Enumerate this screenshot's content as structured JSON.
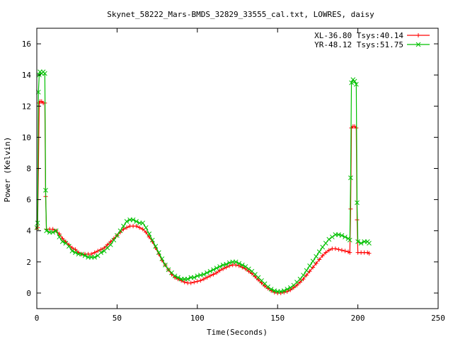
{
  "chart_data": {
    "type": "line",
    "title": "Skynet_58222_Mars-BMDS_32829_33555_cal.txt, LOWRES, daisy",
    "xlabel": "Time(Seconds)",
    "ylabel": "Power (Kelvin)",
    "xlim": [
      0,
      250
    ],
    "ylim": [
      -1,
      17
    ],
    "xticks": [
      "0",
      "50",
      "100",
      "150",
      "200",
      "250"
    ],
    "yticks": [
      "0",
      "2",
      "4",
      "6",
      "8",
      "10",
      "12",
      "14",
      "16"
    ],
    "grid": false,
    "legend_position": "top-right",
    "series": [
      {
        "name": "XL-36.80 Tsys:40.14",
        "color": "#ff0000",
        "points": [
          [
            0,
            4.1
          ],
          [
            0.5,
            4.2
          ],
          [
            1,
            8.0
          ],
          [
            1.5,
            12.2
          ],
          [
            2,
            12.3
          ],
          [
            3,
            12.3
          ],
          [
            4,
            12.2
          ],
          [
            5,
            12.2
          ],
          [
            5.5,
            6.2
          ],
          [
            6,
            4.1
          ],
          [
            8,
            4.1
          ],
          [
            10,
            4.1
          ],
          [
            12,
            4.0
          ],
          [
            14,
            3.8
          ],
          [
            16,
            3.5
          ],
          [
            18,
            3.3
          ],
          [
            20,
            3.1
          ],
          [
            22,
            2.9
          ],
          [
            24,
            2.8
          ],
          [
            26,
            2.6
          ],
          [
            28,
            2.5
          ],
          [
            30,
            2.5
          ],
          [
            32,
            2.5
          ],
          [
            34,
            2.5
          ],
          [
            36,
            2.6
          ],
          [
            38,
            2.7
          ],
          [
            40,
            2.8
          ],
          [
            42,
            2.9
          ],
          [
            44,
            3.1
          ],
          [
            46,
            3.3
          ],
          [
            48,
            3.5
          ],
          [
            50,
            3.7
          ],
          [
            52,
            3.9
          ],
          [
            54,
            4.1
          ],
          [
            56,
            4.2
          ],
          [
            58,
            4.3
          ],
          [
            60,
            4.3
          ],
          [
            62,
            4.3
          ],
          [
            64,
            4.2
          ],
          [
            66,
            4.1
          ],
          [
            68,
            3.9
          ],
          [
            70,
            3.6
          ],
          [
            72,
            3.3
          ],
          [
            74,
            2.9
          ],
          [
            76,
            2.5
          ],
          [
            78,
            2.1
          ],
          [
            80,
            1.8
          ],
          [
            82,
            1.5
          ],
          [
            84,
            1.2
          ],
          [
            86,
            1.0
          ],
          [
            88,
            0.9
          ],
          [
            90,
            0.8
          ],
          [
            92,
            0.7
          ],
          [
            94,
            0.65
          ],
          [
            96,
            0.65
          ],
          [
            98,
            0.7
          ],
          [
            100,
            0.75
          ],
          [
            102,
            0.8
          ],
          [
            104,
            0.9
          ],
          [
            106,
            1.0
          ],
          [
            108,
            1.1
          ],
          [
            110,
            1.2
          ],
          [
            112,
            1.3
          ],
          [
            114,
            1.45
          ],
          [
            116,
            1.55
          ],
          [
            118,
            1.65
          ],
          [
            120,
            1.75
          ],
          [
            122,
            1.8
          ],
          [
            124,
            1.8
          ],
          [
            126,
            1.75
          ],
          [
            128,
            1.65
          ],
          [
            130,
            1.55
          ],
          [
            132,
            1.4
          ],
          [
            134,
            1.25
          ],
          [
            136,
            1.05
          ],
          [
            138,
            0.85
          ],
          [
            140,
            0.65
          ],
          [
            142,
            0.45
          ],
          [
            144,
            0.3
          ],
          [
            146,
            0.15
          ],
          [
            148,
            0.05
          ],
          [
            150,
            0.0
          ],
          [
            152,
            0.0
          ],
          [
            154,
            0.05
          ],
          [
            156,
            0.1
          ],
          [
            158,
            0.2
          ],
          [
            160,
            0.35
          ],
          [
            162,
            0.5
          ],
          [
            164,
            0.7
          ],
          [
            166,
            0.9
          ],
          [
            168,
            1.15
          ],
          [
            170,
            1.4
          ],
          [
            172,
            1.65
          ],
          [
            174,
            1.9
          ],
          [
            176,
            2.15
          ],
          [
            178,
            2.4
          ],
          [
            180,
            2.6
          ],
          [
            182,
            2.75
          ],
          [
            184,
            2.85
          ],
          [
            186,
            2.85
          ],
          [
            188,
            2.8
          ],
          [
            190,
            2.75
          ],
          [
            192,
            2.7
          ],
          [
            194,
            2.65
          ],
          [
            195,
            2.6
          ],
          [
            195.5,
            5.4
          ],
          [
            196,
            10.6
          ],
          [
            197,
            10.7
          ],
          [
            198,
            10.7
          ],
          [
            199,
            10.6
          ],
          [
            199.5,
            4.7
          ],
          [
            200,
            2.6
          ],
          [
            202,
            2.6
          ],
          [
            204,
            2.6
          ],
          [
            206,
            2.6
          ],
          [
            207,
            2.55
          ]
        ]
      },
      {
        "name": "YR-48.12 Tsys:51.75",
        "color": "#00c000",
        "points": [
          [
            0,
            4.2
          ],
          [
            0.5,
            4.5
          ],
          [
            1,
            12.9
          ],
          [
            1.5,
            14.0
          ],
          [
            2,
            14.2
          ],
          [
            3,
            14.1
          ],
          [
            4,
            14.2
          ],
          [
            5,
            14.1
          ],
          [
            5.5,
            6.6
          ],
          [
            6,
            4.0
          ],
          [
            8,
            3.9
          ],
          [
            10,
            3.9
          ],
          [
            12,
            4.0
          ],
          [
            14,
            3.6
          ],
          [
            16,
            3.3
          ],
          [
            18,
            3.2
          ],
          [
            20,
            3.0
          ],
          [
            22,
            2.7
          ],
          [
            24,
            2.6
          ],
          [
            26,
            2.5
          ],
          [
            28,
            2.5
          ],
          [
            30,
            2.4
          ],
          [
            32,
            2.3
          ],
          [
            34,
            2.3
          ],
          [
            36,
            2.3
          ],
          [
            38,
            2.4
          ],
          [
            40,
            2.6
          ],
          [
            42,
            2.7
          ],
          [
            44,
            2.9
          ],
          [
            46,
            3.1
          ],
          [
            48,
            3.4
          ],
          [
            50,
            3.7
          ],
          [
            52,
            4.0
          ],
          [
            54,
            4.3
          ],
          [
            56,
            4.6
          ],
          [
            58,
            4.7
          ],
          [
            60,
            4.7
          ],
          [
            62,
            4.6
          ],
          [
            64,
            4.5
          ],
          [
            66,
            4.5
          ],
          [
            68,
            4.2
          ],
          [
            70,
            3.8
          ],
          [
            72,
            3.4
          ],
          [
            74,
            3.0
          ],
          [
            76,
            2.6
          ],
          [
            78,
            2.2
          ],
          [
            80,
            1.8
          ],
          [
            82,
            1.5
          ],
          [
            84,
            1.3
          ],
          [
            86,
            1.1
          ],
          [
            88,
            1.0
          ],
          [
            90,
            0.9
          ],
          [
            92,
            0.9
          ],
          [
            94,
            0.9
          ],
          [
            96,
            1.0
          ],
          [
            98,
            1.0
          ],
          [
            100,
            1.1
          ],
          [
            102,
            1.15
          ],
          [
            104,
            1.2
          ],
          [
            106,
            1.3
          ],
          [
            108,
            1.4
          ],
          [
            110,
            1.5
          ],
          [
            112,
            1.6
          ],
          [
            114,
            1.7
          ],
          [
            116,
            1.8
          ],
          [
            118,
            1.85
          ],
          [
            120,
            1.95
          ],
          [
            122,
            2.0
          ],
          [
            124,
            2.0
          ],
          [
            126,
            1.9
          ],
          [
            128,
            1.8
          ],
          [
            130,
            1.7
          ],
          [
            132,
            1.55
          ],
          [
            134,
            1.4
          ],
          [
            136,
            1.2
          ],
          [
            138,
            1.0
          ],
          [
            140,
            0.8
          ],
          [
            142,
            0.6
          ],
          [
            144,
            0.4
          ],
          [
            146,
            0.25
          ],
          [
            148,
            0.15
          ],
          [
            150,
            0.1
          ],
          [
            152,
            0.1
          ],
          [
            154,
            0.15
          ],
          [
            156,
            0.25
          ],
          [
            158,
            0.35
          ],
          [
            160,
            0.5
          ],
          [
            162,
            0.7
          ],
          [
            164,
            0.9
          ],
          [
            166,
            1.15
          ],
          [
            168,
            1.45
          ],
          [
            170,
            1.75
          ],
          [
            172,
            2.05
          ],
          [
            174,
            2.35
          ],
          [
            176,
            2.65
          ],
          [
            178,
            2.95
          ],
          [
            180,
            3.2
          ],
          [
            182,
            3.45
          ],
          [
            184,
            3.6
          ],
          [
            186,
            3.75
          ],
          [
            188,
            3.75
          ],
          [
            190,
            3.7
          ],
          [
            192,
            3.6
          ],
          [
            194,
            3.5
          ],
          [
            195,
            3.4
          ],
          [
            195.5,
            7.4
          ],
          [
            196,
            13.5
          ],
          [
            197,
            13.7
          ],
          [
            198,
            13.6
          ],
          [
            199,
            13.4
          ],
          [
            199.5,
            5.8
          ],
          [
            200,
            3.3
          ],
          [
            202,
            3.2
          ],
          [
            204,
            3.3
          ],
          [
            206,
            3.3
          ],
          [
            207,
            3.2
          ]
        ]
      }
    ]
  }
}
